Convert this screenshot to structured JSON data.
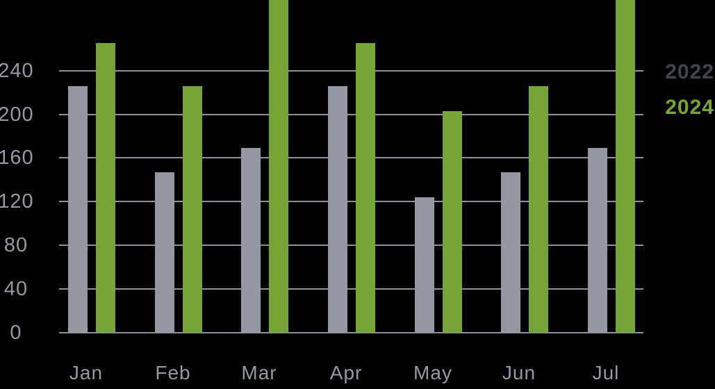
{
  "chart_data": {
    "type": "bar",
    "title": "",
    "xlabel": "",
    "ylabel": "",
    "categories": [
      "Jan",
      "Feb",
      "Mar",
      "Apr",
      "May",
      "Jun",
      "Jul"
    ],
    "series": [
      {
        "name": "2022",
        "color": "#9398a2",
        "values": [
          226,
          147,
          169,
          226,
          124,
          147,
          169
        ]
      },
      {
        "name": "2024",
        "color": "#76a437",
        "values": [
          265,
          226,
          310,
          265,
          203,
          226,
          310
        ]
      }
    ],
    "yticks": [
      0,
      40,
      80,
      120,
      160,
      200,
      240
    ],
    "ylim": [
      0,
      240
    ],
    "grid": true,
    "legend_position": "top-right",
    "clipping_note": "2024 bars for Mar and Jul extend past the top edge of the image; 310 is an estimated minimum read from the pixel scale."
  },
  "colors": {
    "background": "#000000",
    "gridline": "#8d919b",
    "axis_label": "#9499a3",
    "legend_2022_text": "#3f444d",
    "legend_2024_text": "#76a437"
  }
}
